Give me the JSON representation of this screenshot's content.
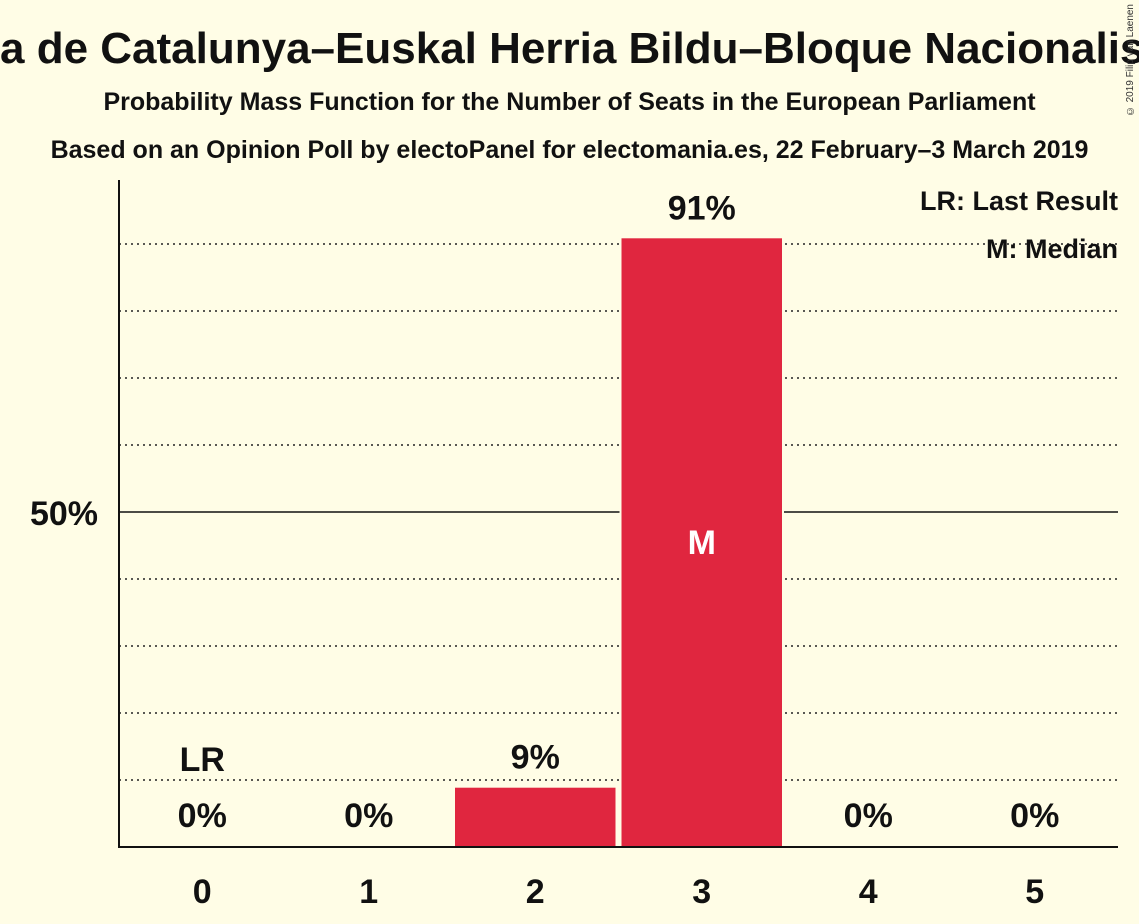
{
  "title": "a de Catalunya–Euskal Herria Bildu–Bloque Nacionalista",
  "subtitle": "Probability Mass Function for the Number of Seats in the European Parliament",
  "subtitle2": "Based on an Opinion Poll by electoPanel for electomania.es, 22 February–3 March 2019",
  "copyright": "© 2019 Filip van Laenen",
  "legend": {
    "last_result": "LR: Last Result",
    "median": "M: Median"
  },
  "colors": {
    "bar": "#e0263f",
    "background": "#fffde6"
  },
  "chart_data": {
    "type": "bar",
    "categories": [
      "0",
      "1",
      "2",
      "3",
      "4",
      "5"
    ],
    "values": [
      0,
      0,
      9,
      91,
      0,
      0
    ],
    "value_labels": [
      "0%",
      "0%",
      "9%",
      "91%",
      "0%",
      "0%"
    ],
    "ylim": [
      0,
      100
    ],
    "y_tick_label": "50%",
    "y_tick_value": 50,
    "gridlines": [
      10,
      20,
      30,
      40,
      60,
      70,
      80,
      90
    ],
    "last_result_index": 0,
    "last_result_label": "LR",
    "median_index": 3,
    "median_label": "M",
    "legend_position": "top-right"
  }
}
